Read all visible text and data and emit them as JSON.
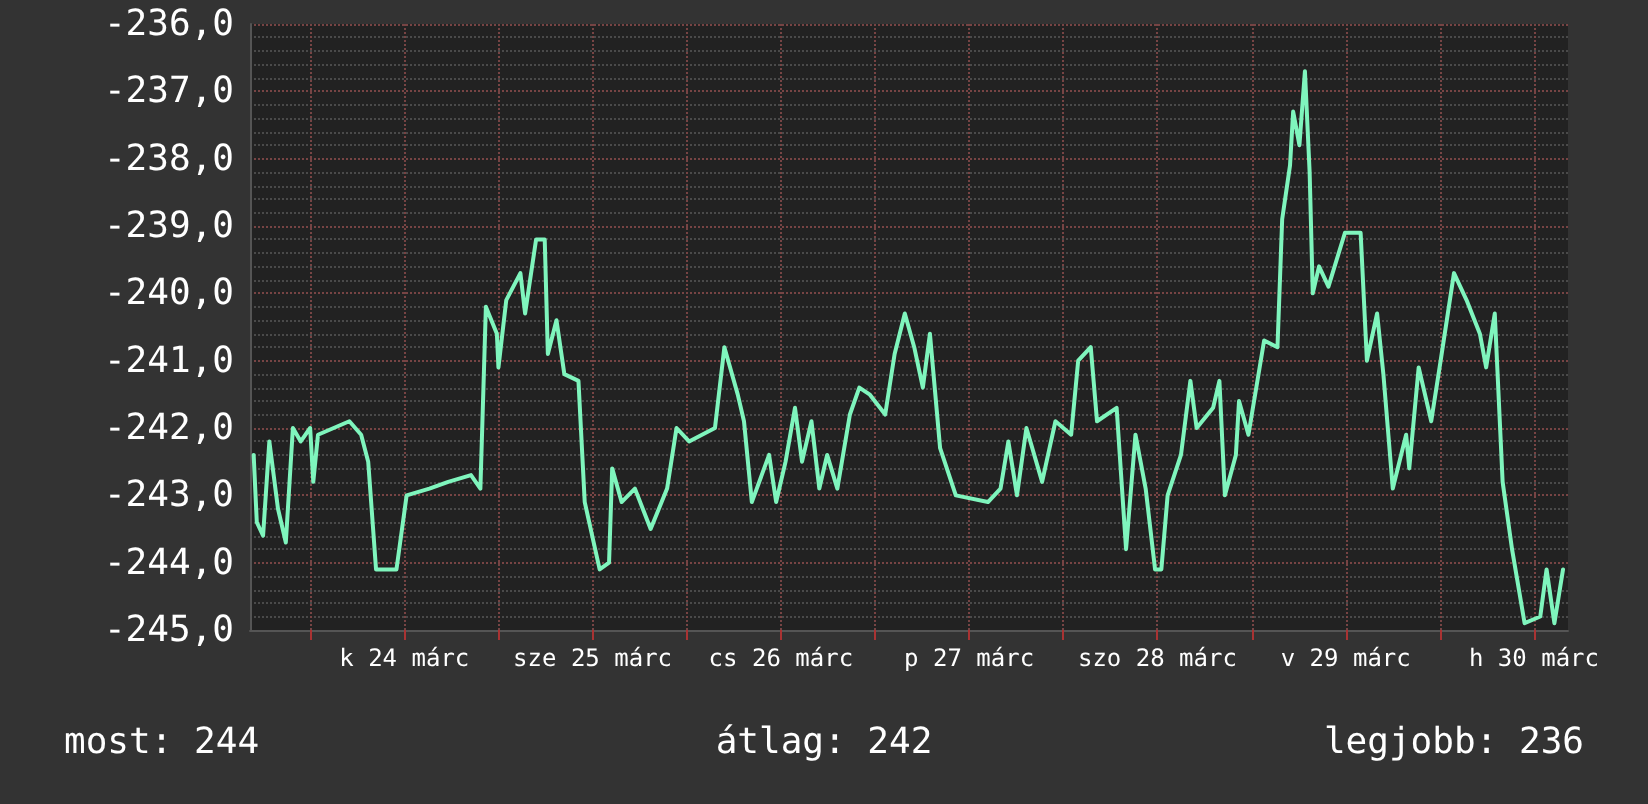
{
  "chart_data": {
    "type": "line",
    "x": [
      "--03-23T16:48",
      "--03-23T17:12",
      "--03-23T18:00",
      "--03-23T18:48",
      "--03-23T19:54",
      "--03-23T20:54",
      "--03-23T21:48",
      "--03-23T22:48",
      "--03-24T00:00",
      "--03-24T00:24",
      "--03-24T01:00",
      "--03-24T05:00",
      "--03-24T06:30",
      "--03-24T07:24",
      "--03-24T08:24",
      "--03-24T11:00",
      "--03-24T12:18",
      "--03-24T15:12",
      "--03-24T17:36",
      "--03-24T20:30",
      "--03-24T21:42",
      "--03-24T22:24",
      "--03-24T23:48",
      "--03-25T00:00",
      "--03-25T01:00",
      "--03-25T02:48",
      "--03-25T03:24",
      "--03-25T04:48",
      "--03-25T05:54",
      "--03-25T06:18",
      "--03-25T07:24",
      "--03-25T08:24",
      "--03-25T10:12",
      "--03-25T11:00",
      "--03-25T12:54",
      "--03-25T14:06",
      "--03-25T14:30",
      "--03-25T15:42",
      "--03-25T17:24",
      "--03-25T19:24",
      "--03-25T21:30",
      "--03-25T22:42",
      "--03-26T00:18",
      "--03-26T03:36",
      "--03-26T04:48",
      "--03-26T06:30",
      "--03-26T07:18",
      "--03-26T08:18",
      "--03-26T10:30",
      "--03-26T11:24",
      "--03-26T12:36",
      "--03-26T13:48",
      "--03-26T14:42",
      "--03-26T15:54",
      "--03-26T16:54",
      "--03-26T17:54",
      "--03-26T19:12",
      "--03-26T20:48",
      "--03-26T22:00",
      "--03-26T23:18",
      "--03-27T01:18",
      "--03-27T02:30",
      "--03-27T03:48",
      "--03-27T05:00",
      "--03-27T06:06",
      "--03-27T07:00",
      "--03-27T08:18",
      "--03-27T10:18",
      "--03-27T14:24",
      "--03-27T16:00",
      "--03-27T17:00",
      "--03-27T18:06",
      "--03-27T19:18",
      "--03-27T21:18",
      "--03-27T23:00",
      "--03-28T01:00",
      "--03-28T01:54",
      "--03-28T03:30",
      "--03-28T04:18",
      "--03-28T06:48",
      "--03-28T08:00",
      "--03-28T09:12",
      "--03-28T10:30",
      "--03-28T11:42",
      "--03-28T12:30",
      "--03-28T13:18",
      "--03-28T15:00",
      "--03-28T16:12",
      "--03-28T17:00",
      "--03-28T19:06",
      "--03-28T19:54",
      "--03-28T20:36",
      "--03-28T22:00",
      "--03-28T22:24",
      "--03-28T23:36",
      "--03-29T01:36",
      "--03-29T03:18",
      "--03-29T03:54",
      "--03-29T04:54",
      "--03-29T05:18",
      "--03-29T06:06",
      "--03-29T06:48",
      "--03-29T07:24",
      "--03-29T07:48",
      "--03-29T08:36",
      "--03-29T09:48",
      "--03-29T11:54",
      "--03-29T13:54",
      "--03-29T14:42",
      "--03-29T16:00",
      "--03-29T16:48",
      "--03-29T18:00",
      "--03-29T19:42",
      "--03-29T20:06",
      "--03-29T21:18",
      "--03-29T22:54",
      "--03-30T00:06",
      "--03-30T01:48",
      "--03-30T03:24",
      "--03-30T05:06",
      "--03-30T05:54",
      "--03-30T07:00",
      "--03-30T08:00",
      "--03-30T09:12",
      "--03-30T10:48",
      "--03-30T12:48",
      "--03-30T13:36",
      "--03-30T14:36",
      "--03-30T15:42"
    ],
    "series": [
      {
        "color": "#7ff5bd",
        "values": [
          -242.4,
          -243.4,
          -243.6,
          -242.2,
          -243.2,
          -243.7,
          -242.0,
          -242.2,
          -242.0,
          -242.8,
          -242.1,
          -241.9,
          -242.1,
          -242.5,
          -244.1,
          -244.1,
          -243.0,
          -242.9,
          -242.8,
          -242.7,
          -242.9,
          -240.2,
          -240.6,
          -241.1,
          -240.1,
          -239.7,
          -240.3,
          -239.2,
          -239.2,
          -240.9,
          -240.4,
          -241.2,
          -241.3,
          -243.1,
          -244.1,
          -244.0,
          -242.6,
          -243.1,
          -242.9,
          -243.5,
          -242.9,
          -242.0,
          -242.2,
          -242.0,
          -240.8,
          -241.5,
          -241.9,
          -243.1,
          -242.4,
          -243.1,
          -242.5,
          -241.7,
          -242.5,
          -241.9,
          -242.9,
          -242.4,
          -242.9,
          -241.8,
          -241.4,
          -241.5,
          -241.8,
          -240.9,
          -240.3,
          -240.8,
          -241.4,
          -240.6,
          -242.3,
          -243.0,
          -243.1,
          -242.9,
          -242.2,
          -243.0,
          -242.0,
          -242.8,
          -241.9,
          -242.1,
          -241.0,
          -240.8,
          -241.9,
          -241.7,
          -243.8,
          -242.1,
          -242.9,
          -244.1,
          -244.1,
          -243.0,
          -242.4,
          -241.3,
          -242.0,
          -241.7,
          -241.3,
          -243.0,
          -242.4,
          -241.6,
          -242.1,
          -240.7,
          -240.8,
          -238.9,
          -238.1,
          -237.3,
          -237.8,
          -236.7,
          -238.2,
          -240.0,
          -239.6,
          -239.9,
          -239.1,
          -239.1,
          -241.0,
          -240.3,
          -241.2,
          -242.9,
          -242.1,
          -242.6,
          -241.1,
          -241.9,
          -241.0,
          -239.7,
          -240.1,
          -240.6,
          -241.1,
          -240.3,
          -242.8,
          -243.8,
          -244.9,
          -244.8,
          -244.1,
          -244.9,
          -244.1
        ]
      }
    ],
    "xlim": [
      "--03-23T16:20",
      "--03-30T16:20"
    ],
    "xticks": [
      {
        "value": "--03-24T00:00",
        "label": null
      },
      {
        "value": "--03-24T12:00",
        "label": "k 24 márc"
      },
      {
        "value": "--03-25T00:00",
        "label": null
      },
      {
        "value": "--03-25T12:00",
        "label": "sze 25 márc"
      },
      {
        "value": "--03-26T00:00",
        "label": null
      },
      {
        "value": "--03-26T12:00",
        "label": "cs 26 márc"
      },
      {
        "value": "--03-27T00:00",
        "label": null
      },
      {
        "value": "--03-27T12:00",
        "label": "p 27 márc"
      },
      {
        "value": "--03-28T00:00",
        "label": null
      },
      {
        "value": "--03-28T12:00",
        "label": "szo 28 márc"
      },
      {
        "value": "--03-29T00:00",
        "label": null
      },
      {
        "value": "--03-29T12:00",
        "label": "v 29 márc"
      },
      {
        "value": "--03-30T00:00",
        "label": null
      },
      {
        "value": "--03-30T12:00",
        "label": "h 30 márc"
      }
    ],
    "ylim": [
      -245,
      -236
    ],
    "yticks": [
      {
        "value": -245,
        "label": "-245,0"
      },
      {
        "value": -244,
        "label": "-244,0"
      },
      {
        "value": -243,
        "label": "-243,0"
      },
      {
        "value": -242,
        "label": "-242,0"
      },
      {
        "value": -241,
        "label": "-241,0"
      },
      {
        "value": -240,
        "label": "-240,0"
      },
      {
        "value": -239,
        "label": "-239,0"
      },
      {
        "value": -238,
        "label": "-238,0"
      },
      {
        "value": -237,
        "label": "-237,0"
      },
      {
        "value": -236,
        "label": "-236,0"
      }
    ],
    "grid": true,
    "marker": "none",
    "line_style": "solid",
    "annotations": [
      "most: 244",
      "átlag: 242",
      "legjobb: 236"
    ]
  }
}
